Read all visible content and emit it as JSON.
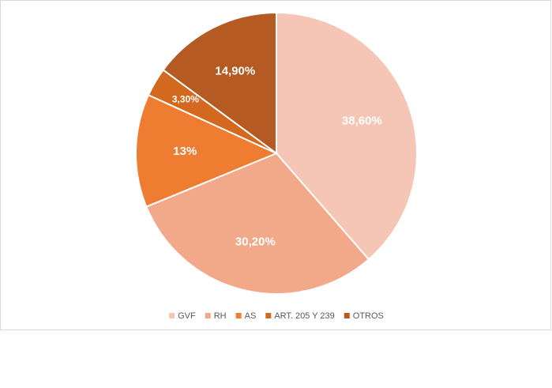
{
  "chart_data": {
    "type": "pie",
    "categories": [
      "GVF",
      "RH",
      "AS",
      "ART. 205 Y 239",
      "OTROS"
    ],
    "values": [
      38.6,
      30.2,
      13,
      3.3,
      14.9
    ],
    "value_labels": [
      "38,60%",
      "30,20%",
      "13%",
      "3,30%",
      "14,90%"
    ],
    "colors": [
      "#f5c6b5",
      "#f1a98a",
      "#ee7d32",
      "#d2691e",
      "#b45a22"
    ],
    "legend": "bottom"
  }
}
